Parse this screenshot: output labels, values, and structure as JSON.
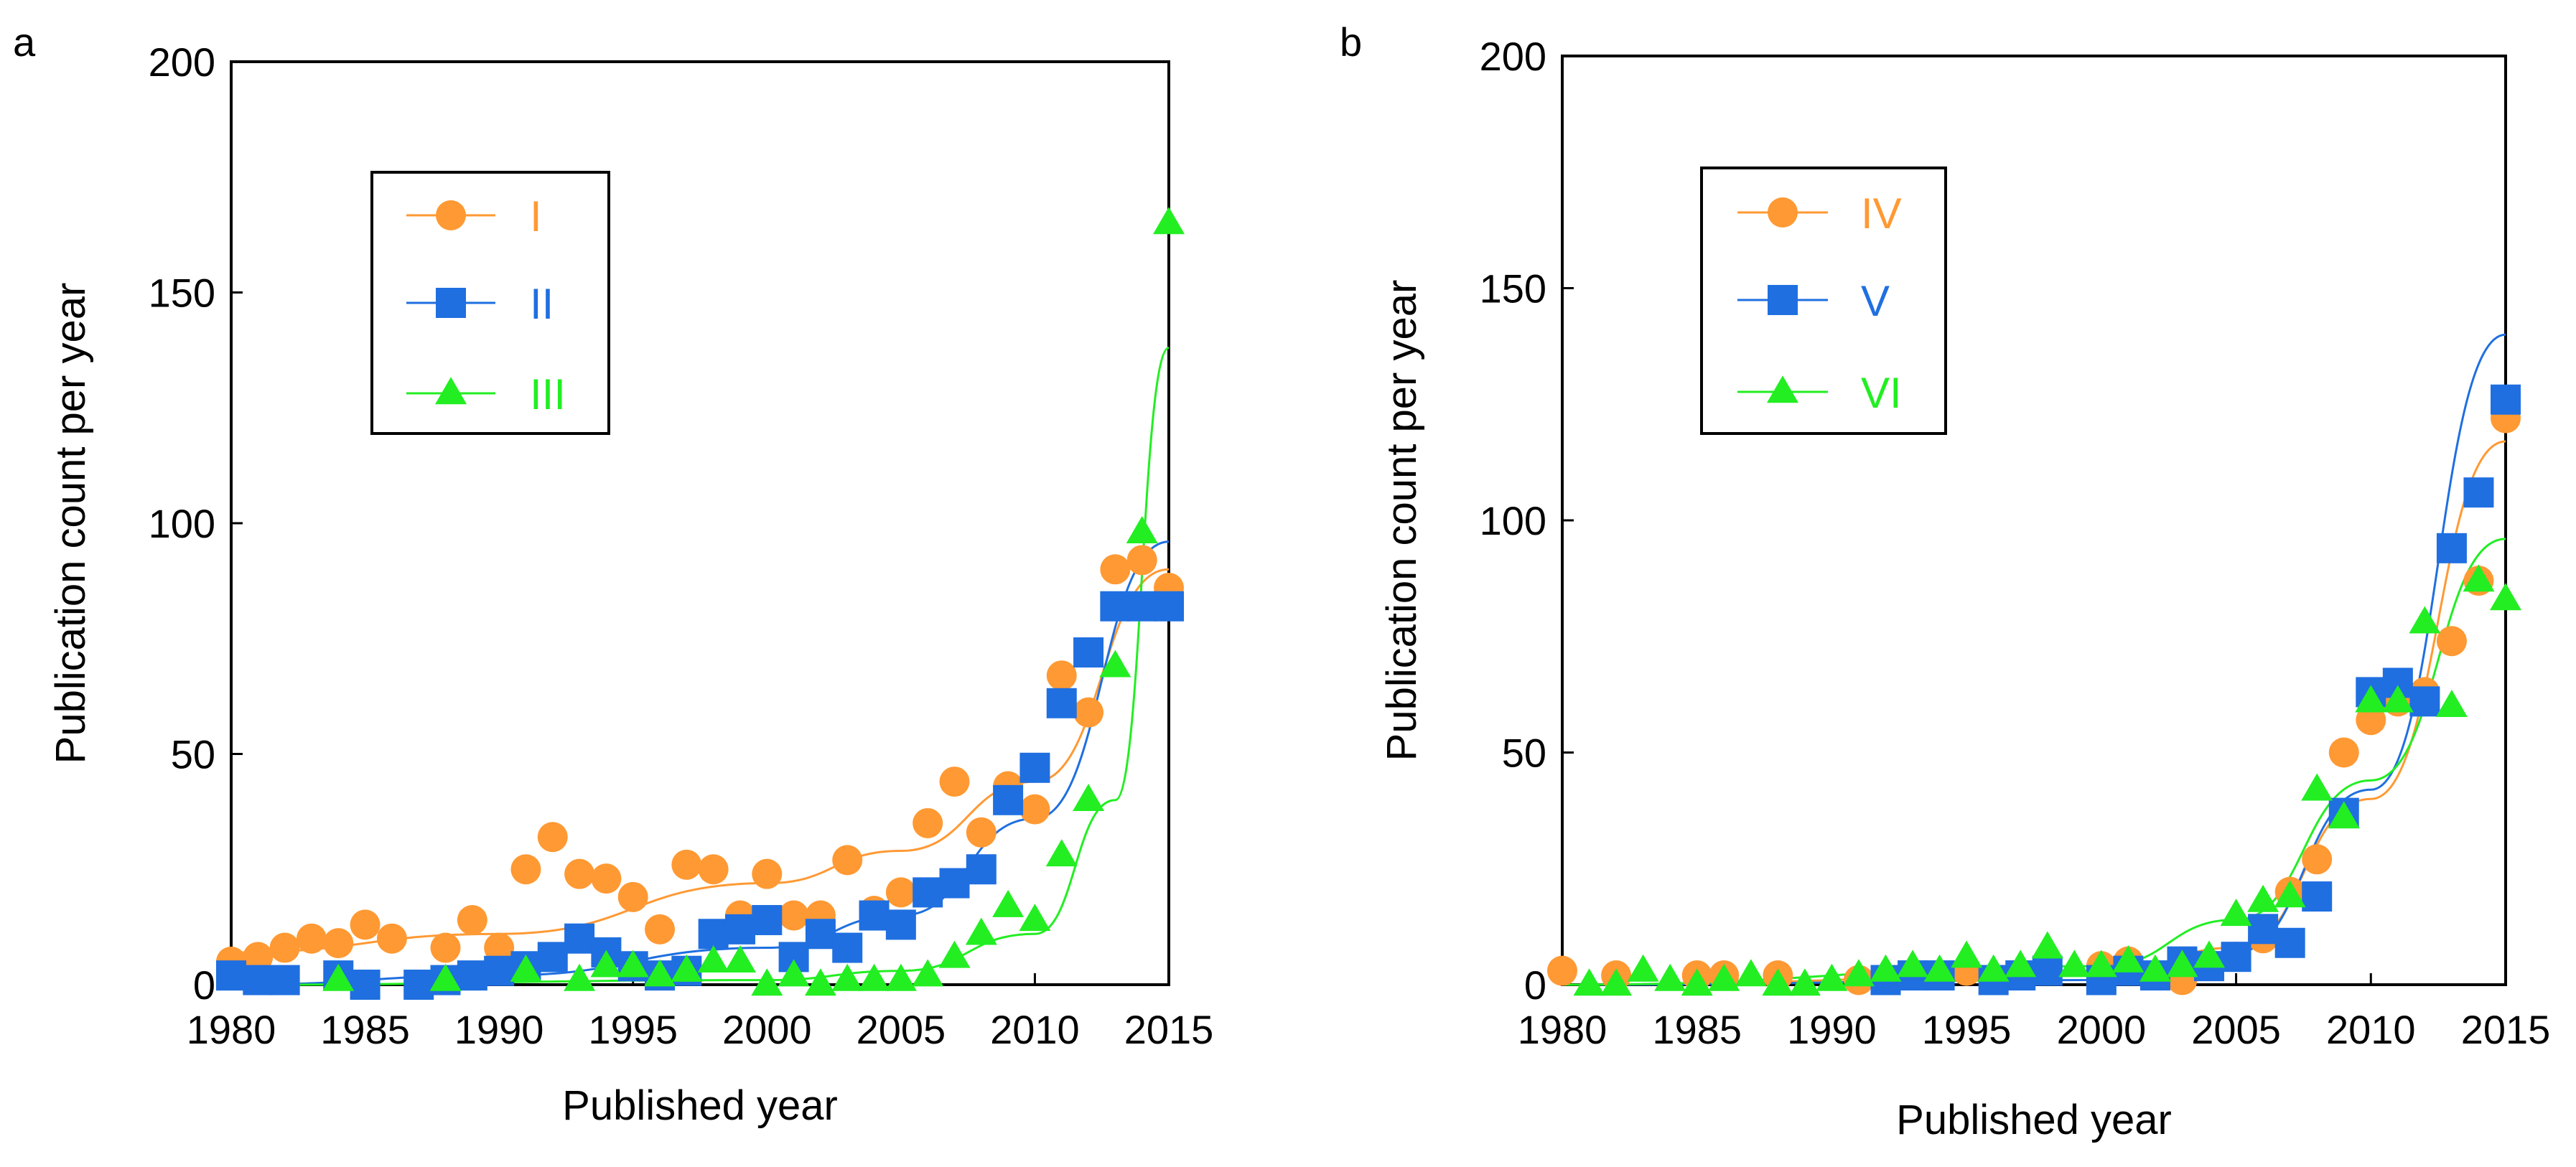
{
  "chart_data": [
    {
      "panel": "a",
      "type": "scatter",
      "xlabel": "Published year",
      "ylabel": "Publication count per year",
      "xlim": [
        1980,
        2015
      ],
      "ylim": [
        0,
        200
      ],
      "xticks": [
        1980,
        1985,
        1990,
        1995,
        2000,
        2005,
        2010,
        2015
      ],
      "yticks": [
        0,
        50,
        100,
        150,
        200
      ],
      "grid": false,
      "legend_position": "top-left",
      "trendlines": "exponential fit per series",
      "series": [
        {
          "name": "I",
          "color": "#ff9933",
          "marker": "circle",
          "x": [
            1980,
            1981,
            1982,
            1983,
            1984,
            1985,
            1986,
            1988,
            1989,
            1990,
            1991,
            1992,
            1993,
            1994,
            1995,
            1996,
            1997,
            1998,
            1999,
            2000,
            2001,
            2002,
            2003,
            2004,
            2005,
            2006,
            2007,
            2008,
            2009,
            2010,
            2011,
            2012,
            2013,
            2014,
            2015
          ],
          "y": [
            5,
            6,
            8,
            10,
            9,
            13,
            10,
            8,
            14,
            8,
            25,
            32,
            24,
            23,
            19,
            12,
            26,
            25,
            15,
            24,
            15,
            15,
            27,
            16,
            20,
            35,
            44,
            33,
            43,
            38,
            67,
            59,
            90,
            92,
            86
          ],
          "trend": [
            [
              1980,
              7
            ],
            [
              1990,
              11
            ],
            [
              2000,
              22
            ],
            [
              2005,
              29
            ],
            [
              2010,
              44
            ],
            [
              2015,
              90
            ]
          ]
        },
        {
          "name": "II",
          "color": "#1f6fe0",
          "marker": "square",
          "x": [
            1980,
            1981,
            1982,
            1984,
            1985,
            1987,
            1988,
            1989,
            1990,
            1991,
            1992,
            1993,
            1994,
            1995,
            1996,
            1997,
            1998,
            1999,
            2000,
            2001,
            2002,
            2003,
            2004,
            2005,
            2006,
            2007,
            2008,
            2009,
            2010,
            2011,
            2012,
            2013,
            2014,
            2015
          ],
          "y": [
            2,
            1,
            1,
            2,
            0,
            0,
            1,
            2,
            3,
            4,
            6,
            10,
            7,
            4,
            2,
            3,
            11,
            12,
            14,
            6,
            11,
            8,
            15,
            13,
            20,
            22,
            25,
            40,
            47,
            61,
            72,
            82,
            82,
            82
          ],
          "trend": [
            [
              1980,
              0
            ],
            [
              1990,
              2
            ],
            [
              2000,
              8
            ],
            [
              2005,
              15
            ],
            [
              2010,
              36
            ],
            [
              2015,
              96
            ]
          ]
        },
        {
          "name": "III",
          "color": "#22ee22",
          "marker": "triangle",
          "x": [
            1984,
            1988,
            1991,
            1993,
            1994,
            1995,
            1996,
            1997,
            1998,
            1999,
            2000,
            2001,
            2002,
            2003,
            2004,
            2005,
            2006,
            2007,
            2008,
            2009,
            2010,
            2011,
            2012,
            2013,
            2014,
            2015
          ],
          "y": [
            1,
            1,
            3,
            1,
            4,
            4,
            2,
            3,
            5,
            5,
            0,
            2,
            0,
            1,
            1,
            1,
            2,
            6,
            11,
            17,
            14,
            28,
            40,
            69,
            98,
            165
          ],
          "trend": [
            [
              1980,
              0
            ],
            [
              2000,
              1
            ],
            [
              2005,
              3
            ],
            [
              2010,
              11
            ],
            [
              2013,
              40
            ],
            [
              2015,
              138
            ]
          ]
        }
      ]
    },
    {
      "panel": "b",
      "type": "scatter",
      "xlabel": "Published year",
      "ylabel": "Publication count per year",
      "xlim": [
        1980,
        2015
      ],
      "ylim": [
        0,
        200
      ],
      "xticks": [
        1980,
        1985,
        1990,
        1995,
        2000,
        2005,
        2010,
        2015
      ],
      "yticks": [
        0,
        50,
        100,
        150,
        200
      ],
      "grid": false,
      "legend_position": "top-left",
      "trendlines": "exponential fit per series",
      "series": [
        {
          "name": "IV",
          "color": "#ff9933",
          "marker": "circle",
          "x": [
            1980,
            1982,
            1985,
            1986,
            1988,
            1991,
            1995,
            2000,
            2001,
            2002,
            2003,
            2005,
            2006,
            2007,
            2008,
            2009,
            2010,
            2011,
            2012,
            2013,
            2014,
            2015
          ],
          "y": [
            3,
            2,
            2,
            2,
            2,
            1,
            3,
            4,
            5,
            2,
            1,
            6,
            10,
            20,
            27,
            50,
            57,
            61,
            63,
            74,
            87,
            122
          ],
          "trend": [
            [
              1980,
              0
            ],
            [
              2000,
              2
            ],
            [
              2005,
              8
            ],
            [
              2010,
              40
            ],
            [
              2015,
              117
            ]
          ]
        },
        {
          "name": "V",
          "color": "#1f6fe0",
          "marker": "square",
          "x": [
            1992,
            1993,
            1994,
            1996,
            1997,
            1998,
            2000,
            2001,
            2002,
            2003,
            2004,
            2005,
            2006,
            2007,
            2008,
            2009,
            2010,
            2011,
            2012,
            2013,
            2014,
            2015
          ],
          "y": [
            1,
            2,
            2,
            1,
            2,
            3,
            1,
            3,
            2,
            5,
            4,
            6,
            12,
            9,
            19,
            37,
            63,
            65,
            61,
            94,
            106,
            126
          ],
          "trend": [
            [
              1980,
              0
            ],
            [
              2000,
              1
            ],
            [
              2005,
              7
            ],
            [
              2010,
              42
            ],
            [
              2015,
              140
            ]
          ]
        },
        {
          "name": "VI",
          "color": "#22ee22",
          "marker": "triangle",
          "x": [
            1981,
            1982,
            1983,
            1984,
            1985,
            1986,
            1987,
            1988,
            1989,
            1990,
            1991,
            1992,
            1993,
            1994,
            1995,
            1996,
            1997,
            1998,
            1999,
            2000,
            2001,
            2002,
            2003,
            2004,
            2005,
            2006,
            2007,
            2008,
            2009,
            2010,
            2011,
            2012,
            2013,
            2014,
            2015
          ],
          "y": [
            0,
            0,
            3,
            1,
            0,
            1,
            2,
            0,
            0,
            1,
            2,
            3,
            4,
            3,
            6,
            3,
            4,
            8,
            4,
            4,
            5,
            3,
            4,
            6,
            15,
            18,
            19,
            42,
            36,
            61,
            61,
            78,
            60,
            87,
            83
          ],
          "trend": [
            [
              1980,
              0
            ],
            [
              2000,
              4
            ],
            [
              2005,
              14
            ],
            [
              2010,
              44
            ],
            [
              2015,
              96
            ]
          ]
        }
      ]
    }
  ]
}
